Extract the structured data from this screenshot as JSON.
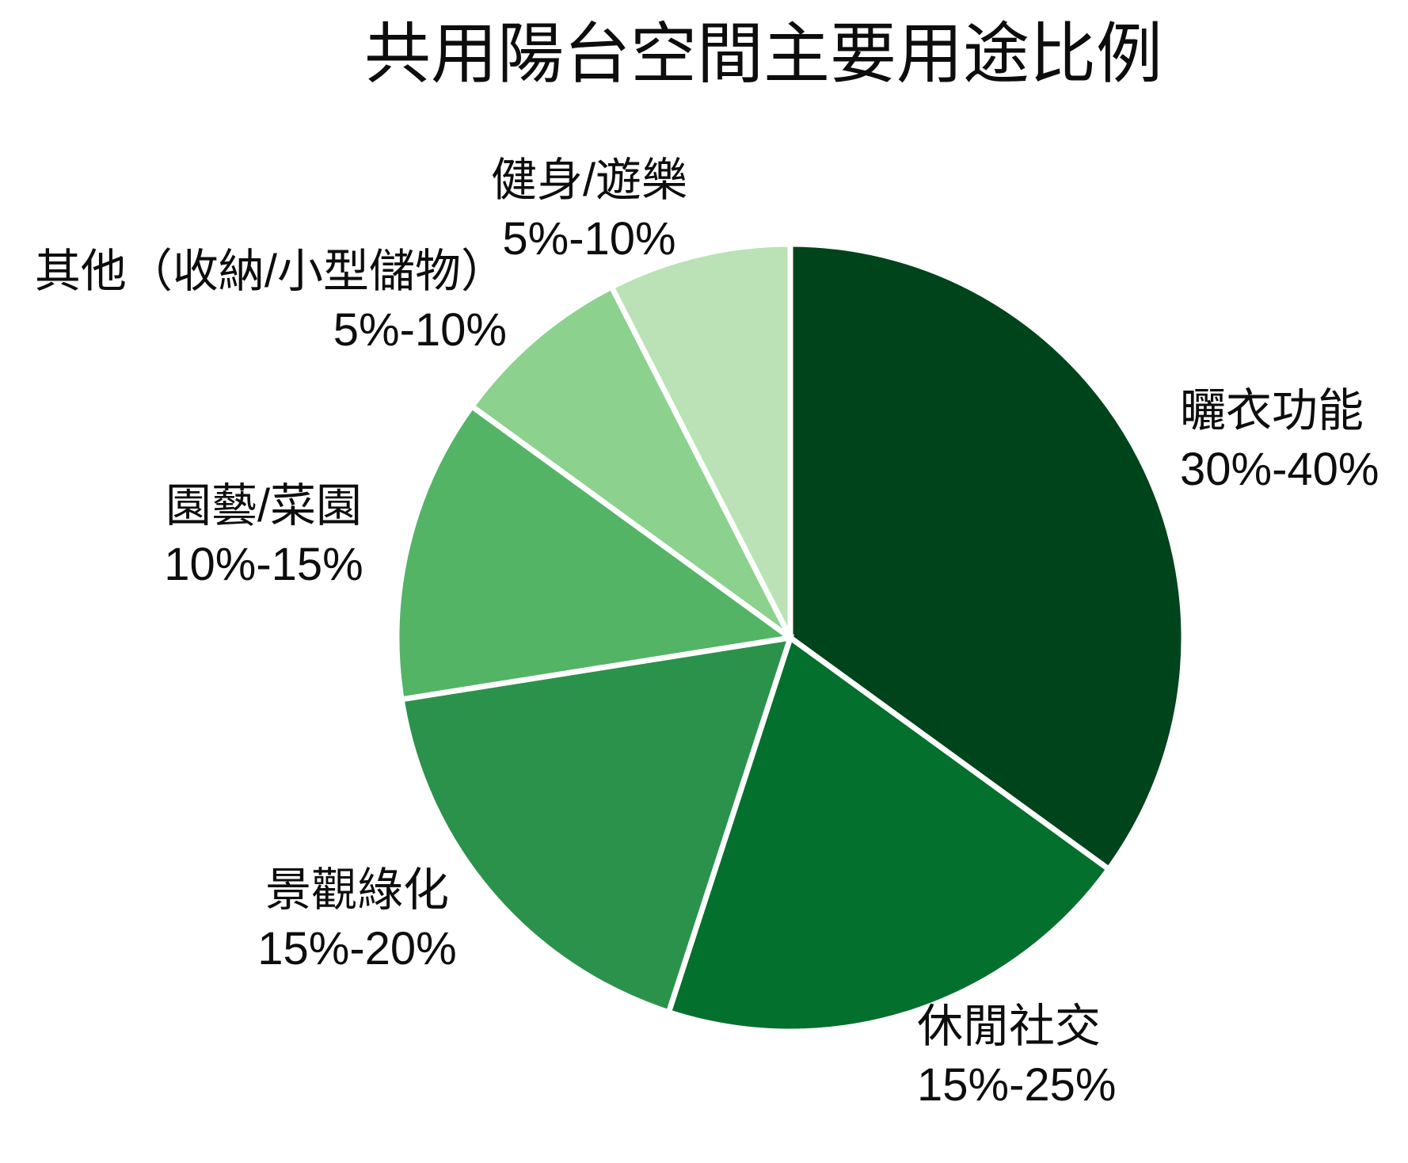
{
  "chart_data": {
    "type": "pie",
    "title": "共用陽台空間主要用途比例",
    "direction": "clockwise",
    "start_angle_deg": 0,
    "labels_position": "outside",
    "legend": "none",
    "background_color": "#ffffff",
    "text_color": "#0d0d0d",
    "separator_color": "#ffffff",
    "slices": [
      {
        "label": "曬衣功能",
        "range_label": "30%-40%",
        "value": 35,
        "color": "#00441b"
      },
      {
        "label": "休閒社交",
        "range_label": "15%-25%",
        "value": 20,
        "color": "#04702e"
      },
      {
        "label": "景觀綠化",
        "range_label": "15%-20%",
        "value": 17.5,
        "color": "#2b924c"
      },
      {
        "label": "園藝/菜園",
        "range_label": "10%-15%",
        "value": 12.5,
        "color": "#53b466"
      },
      {
        "label": "其他（收納/小型儲物）",
        "range_label": "5%-10%",
        "value": 7.5,
        "color": "#8cd28e"
      },
      {
        "label": "健身/遊樂",
        "range_label": "5%-10%",
        "value": 7.5,
        "color": "#bae2b6"
      }
    ]
  }
}
